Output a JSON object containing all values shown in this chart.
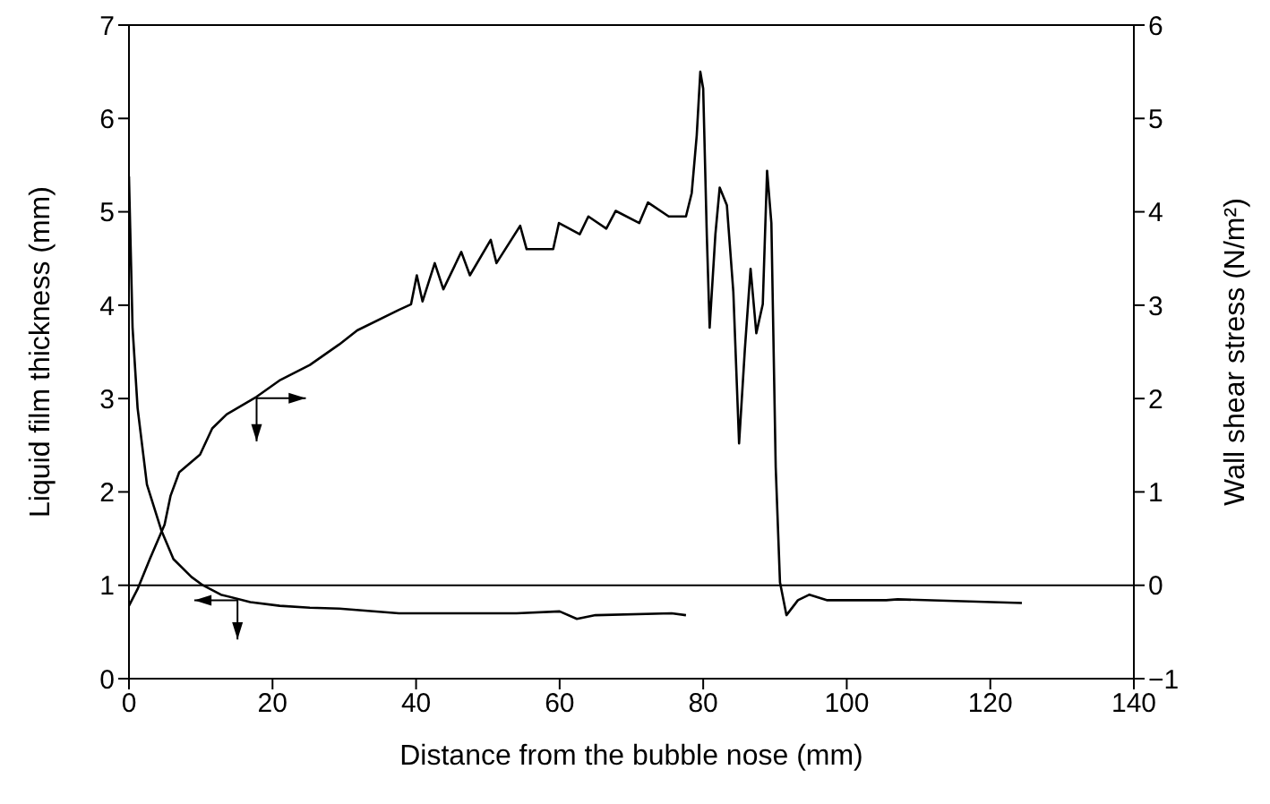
{
  "chart_data": {
    "type": "line",
    "xlabel": "Distance from the bubble nose (mm)",
    "ylabel": "Liquid film thickness (mm)",
    "y2label": "Wall shear stress (N/m²)",
    "xlim": [
      0,
      140
    ],
    "xticks": [
      0,
      20,
      40,
      60,
      80,
      100,
      120,
      140
    ],
    "ylim": [
      0,
      7
    ],
    "yticks": [
      0,
      1,
      2,
      3,
      4,
      5,
      6,
      7
    ],
    "y2lim": [
      -1,
      6
    ],
    "y2ticks": [
      -1,
      0,
      1,
      2,
      3,
      4,
      5,
      6
    ],
    "marker": "none",
    "line_style": "solid",
    "ref_lines": [
      {
        "axis": "y2",
        "value": 0,
        "color": "#000000"
      }
    ],
    "series": [
      {
        "color": "#000000",
        "x": [
          0,
          0.5,
          1.2,
          2.5,
          4.5,
          6.2,
          8.7,
          10.3,
          12.8,
          16.9,
          21,
          25.2,
          29.3,
          37.6,
          45.9,
          54,
          60,
          62.4,
          65,
          75.6,
          77.6
        ],
        "values": [
          5.38,
          3.76,
          2.9,
          2.08,
          1.59,
          1.28,
          1.09,
          1.0,
          0.9,
          0.82,
          0.78,
          0.76,
          0.75,
          0.7,
          0.7,
          0.7,
          0.72,
          0.64,
          0.68,
          0.7,
          0.68
        ]
      },
      {
        "axis": "y2",
        "color": "#000000",
        "x": [
          0,
          1.2,
          2.9,
          4.96,
          5.8,
          7,
          9.9,
          11.6,
          13.6,
          17.8,
          21.1,
          25.2,
          29.3,
          31.8,
          37.6,
          39.3,
          40.1,
          40.9,
          42.6,
          43.8,
          46.3,
          47.5,
          50.4,
          51.2,
          54.5,
          55.4,
          59.1,
          59.9,
          62.8,
          64,
          66.5,
          67.8,
          71.1,
          72.3,
          75.2,
          77.6,
          78.4,
          79.1,
          79.6,
          80.0,
          80.5,
          80.9,
          81.7,
          82.3,
          83.3,
          84.2,
          85.0,
          85.8,
          86.6,
          87.4,
          88.3,
          88.9,
          89.5,
          90.1,
          90.7,
          91.6,
          93.2,
          94.8,
          97.3,
          105.5,
          107.1,
          124.4
        ],
        "values": [
          -0.22,
          -0.04,
          0.28,
          0.65,
          0.96,
          1.21,
          1.4,
          1.68,
          1.83,
          2.02,
          2.2,
          2.36,
          2.58,
          2.73,
          2.95,
          3.01,
          3.32,
          3.04,
          3.45,
          3.17,
          3.57,
          3.32,
          3.7,
          3.45,
          3.85,
          3.6,
          3.6,
          3.88,
          3.76,
          3.95,
          3.82,
          4.01,
          3.88,
          4.1,
          3.95,
          3.95,
          4.2,
          4.82,
          5.5,
          5.32,
          3.76,
          2.76,
          3.76,
          4.26,
          4.07,
          3.14,
          1.52,
          2.52,
          3.39,
          2.7,
          3.01,
          4.44,
          3.88,
          1.27,
          0.03,
          -0.32,
          -0.16,
          -0.1,
          -0.16,
          -0.16,
          -0.15,
          -0.19
        ]
      }
    ]
  }
}
